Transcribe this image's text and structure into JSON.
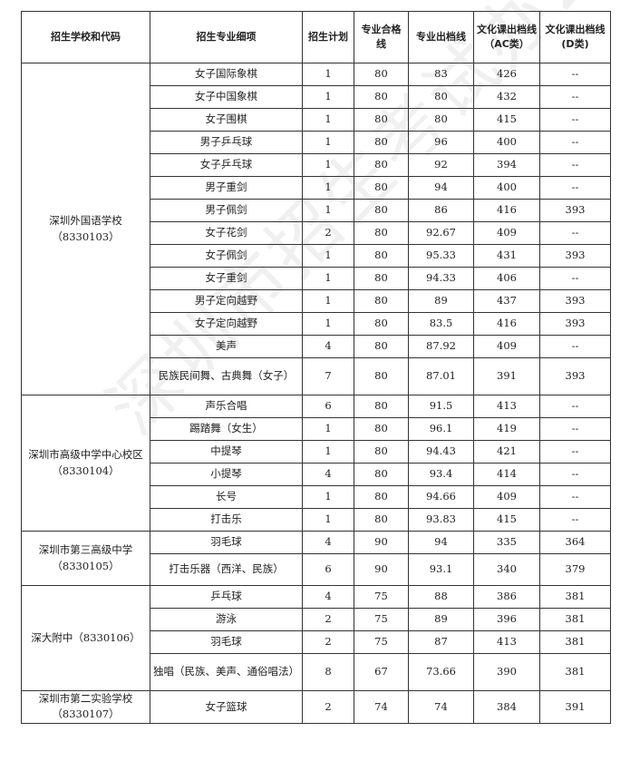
{
  "headers": [
    "招生学校和代码",
    "招生专业细项",
    "招生计划",
    "专业合格线",
    "专业出档线",
    "文化课出档线（AC类）",
    "文化课出档线(D类)"
  ],
  "watermark": "深圳市招生考试办公室",
  "schools": [
    {
      "name": "深圳外国语学校（8330103）",
      "rows": [
        [
          "女子国际象棋",
          "1",
          "80",
          "83",
          "426",
          "--"
        ],
        [
          "女子中国象棋",
          "1",
          "80",
          "80",
          "432",
          "--"
        ],
        [
          "女子围棋",
          "1",
          "80",
          "80",
          "415",
          "--"
        ],
        [
          "男子乒乓球",
          "1",
          "80",
          "96",
          "400",
          "--"
        ],
        [
          "女子乒乓球",
          "1",
          "80",
          "92",
          "394",
          "--"
        ],
        [
          "男子重剑",
          "1",
          "80",
          "94",
          "400",
          "--"
        ],
        [
          "男子佩剑",
          "1",
          "80",
          "86",
          "416",
          "393"
        ],
        [
          "女子花剑",
          "2",
          "80",
          "92.67",
          "409",
          "--"
        ],
        [
          "女子佩剑",
          "1",
          "80",
          "95.33",
          "431",
          "393"
        ],
        [
          "女子重剑",
          "1",
          "80",
          "94.33",
          "406",
          "--"
        ],
        [
          "男子定向越野",
          "1",
          "80",
          "89",
          "437",
          "393"
        ],
        [
          "女子定向越野",
          "1",
          "80",
          "83.5",
          "416",
          "393"
        ],
        [
          "美声",
          "4",
          "80",
          "87.92",
          "409",
          "--"
        ],
        [
          "民族民间舞、古典舞（女子）",
          "7",
          "80",
          "87.01",
          "391",
          "393"
        ]
      ]
    },
    {
      "name": "深圳市高级中学中心校区（8330104）",
      "rows": [
        [
          "声乐合唱",
          "6",
          "80",
          "91.5",
          "413",
          "--"
        ],
        [
          "踢踏舞（女生）",
          "1",
          "80",
          "96.1",
          "419",
          "--"
        ],
        [
          "中提琴",
          "1",
          "80",
          "94.43",
          "421",
          "--"
        ],
        [
          "小提琴",
          "4",
          "80",
          "93.4",
          "414",
          "--"
        ],
        [
          "长号",
          "1",
          "80",
          "94.66",
          "409",
          "--"
        ],
        [
          "打击乐",
          "1",
          "80",
          "93.83",
          "415",
          "--"
        ]
      ]
    },
    {
      "name": "深圳市第三高级中学（8330105）",
      "rows": [
        [
          "羽毛球",
          "4",
          "90",
          "94",
          "335",
          "364"
        ],
        [
          "打击乐器（西洋、民族）",
          "6",
          "90",
          "93.1",
          "340",
          "379"
        ]
      ]
    },
    {
      "name": "深大附中（8330106）",
      "rows": [
        [
          "乒乓球",
          "4",
          "75",
          "88",
          "386",
          "381"
        ],
        [
          "游泳",
          "2",
          "75",
          "89",
          "396",
          "381"
        ],
        [
          "羽毛球",
          "2",
          "75",
          "87",
          "413",
          "381"
        ],
        [
          "独唱（民族、美声、通俗唱法）",
          "8",
          "67",
          "73.66",
          "390",
          "381"
        ]
      ]
    },
    {
      "name": "深圳市第二实验学校（8330107）",
      "rows": [
        [
          "女子篮球",
          "2",
          "74",
          "74",
          "384",
          "391"
        ]
      ]
    }
  ]
}
